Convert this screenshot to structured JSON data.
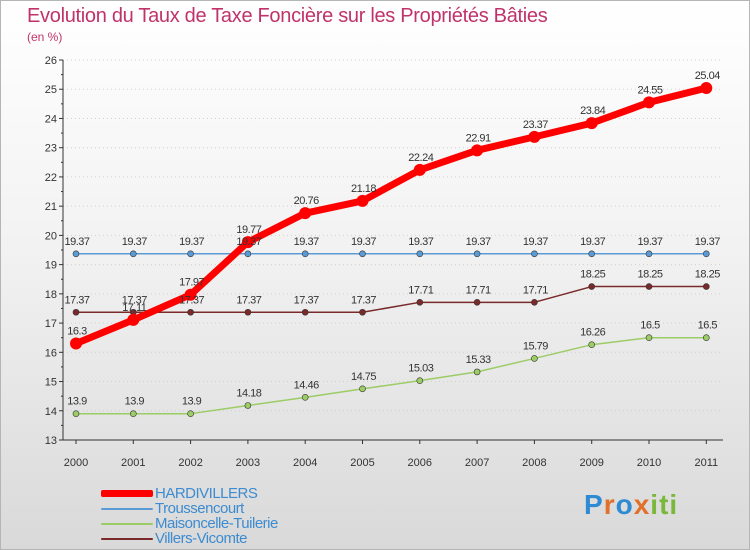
{
  "title": "Evolution du Taux de Taxe Foncière sur les Propriétés Bâties",
  "unit": "(en %)",
  "logo": {
    "letters": [
      "P",
      "r",
      "o",
      "x",
      "i",
      "t",
      "i"
    ],
    "colors": [
      "#2f8ad4",
      "#e0702a",
      "#2f8ad4",
      "#e0702a",
      "#7ab83a",
      "#7ab83a",
      "#7ab83a"
    ]
  },
  "chart_data": {
    "type": "line",
    "title": "Evolution du Taux de Taxe Foncière sur les Propriétés Bâties",
    "ylabel": "(en %)",
    "xlabel": "",
    "categories": [
      "2000",
      "2001",
      "2002",
      "2003",
      "2004",
      "2005",
      "2006",
      "2007",
      "2008",
      "2009",
      "2010",
      "2011"
    ],
    "ylim": [
      13,
      26
    ],
    "yticks": [
      "13",
      "14",
      "15",
      "16",
      "17",
      "18",
      "19",
      "20",
      "21",
      "22",
      "23",
      "24",
      "25",
      "26"
    ],
    "legend_position": "bottom-left",
    "series": [
      {
        "name": "Troussencourt",
        "color": "#5b9bd5",
        "width": 1.5,
        "marker": 3,
        "values": [
          19.37,
          19.37,
          19.37,
          19.37,
          19.37,
          19.37,
          19.37,
          19.37,
          19.37,
          19.37,
          19.37,
          19.37
        ],
        "labels": [
          "19.37",
          "19.37",
          "19.37",
          "19.37",
          "19.37",
          "19.37",
          "19.37",
          "19.37",
          "19.37",
          "19.37",
          "19.37",
          "19.37"
        ]
      },
      {
        "name": "Villers-Vicomte",
        "color": "#7a2a2a",
        "width": 1.5,
        "marker": 3,
        "values": [
          17.37,
          17.37,
          17.37,
          17.37,
          17.37,
          17.37,
          17.71,
          17.71,
          17.71,
          18.25,
          18.25,
          18.25
        ],
        "labels": [
          "17.37",
          "17.37",
          "17.37",
          "17.37",
          "17.37",
          "17.37",
          "17.71",
          "17.71",
          "17.71",
          "18.25",
          "18.25",
          "18.25"
        ]
      },
      {
        "name": "Maisoncelle-Tuilerie",
        "color": "#9ccc65",
        "width": 1.5,
        "marker": 3,
        "values": [
          13.9,
          13.9,
          13.9,
          14.18,
          14.46,
          14.75,
          15.03,
          15.33,
          15.79,
          16.26,
          16.5,
          16.5
        ],
        "labels": [
          "13.9",
          "13.9",
          "13.9",
          "14.18",
          "14.46",
          "14.75",
          "15.03",
          "15.33",
          "15.79",
          "16.26",
          "16.5",
          "16.5"
        ]
      },
      {
        "name": "HARDIVILLERS",
        "color": "#ff0000",
        "width": 7,
        "marker": 6,
        "values": [
          16.3,
          17.11,
          17.97,
          19.77,
          20.76,
          21.18,
          22.24,
          22.91,
          23.37,
          23.84,
          24.55,
          25.04
        ],
        "labels": [
          "16.3",
          "17.11",
          "17.97",
          "19.77",
          "20.76",
          "21.18",
          "22.24",
          "22.91",
          "23.37",
          "23.84",
          "24.55",
          "25.04"
        ]
      }
    ],
    "legend_order": [
      3,
      0,
      2,
      1
    ]
  }
}
